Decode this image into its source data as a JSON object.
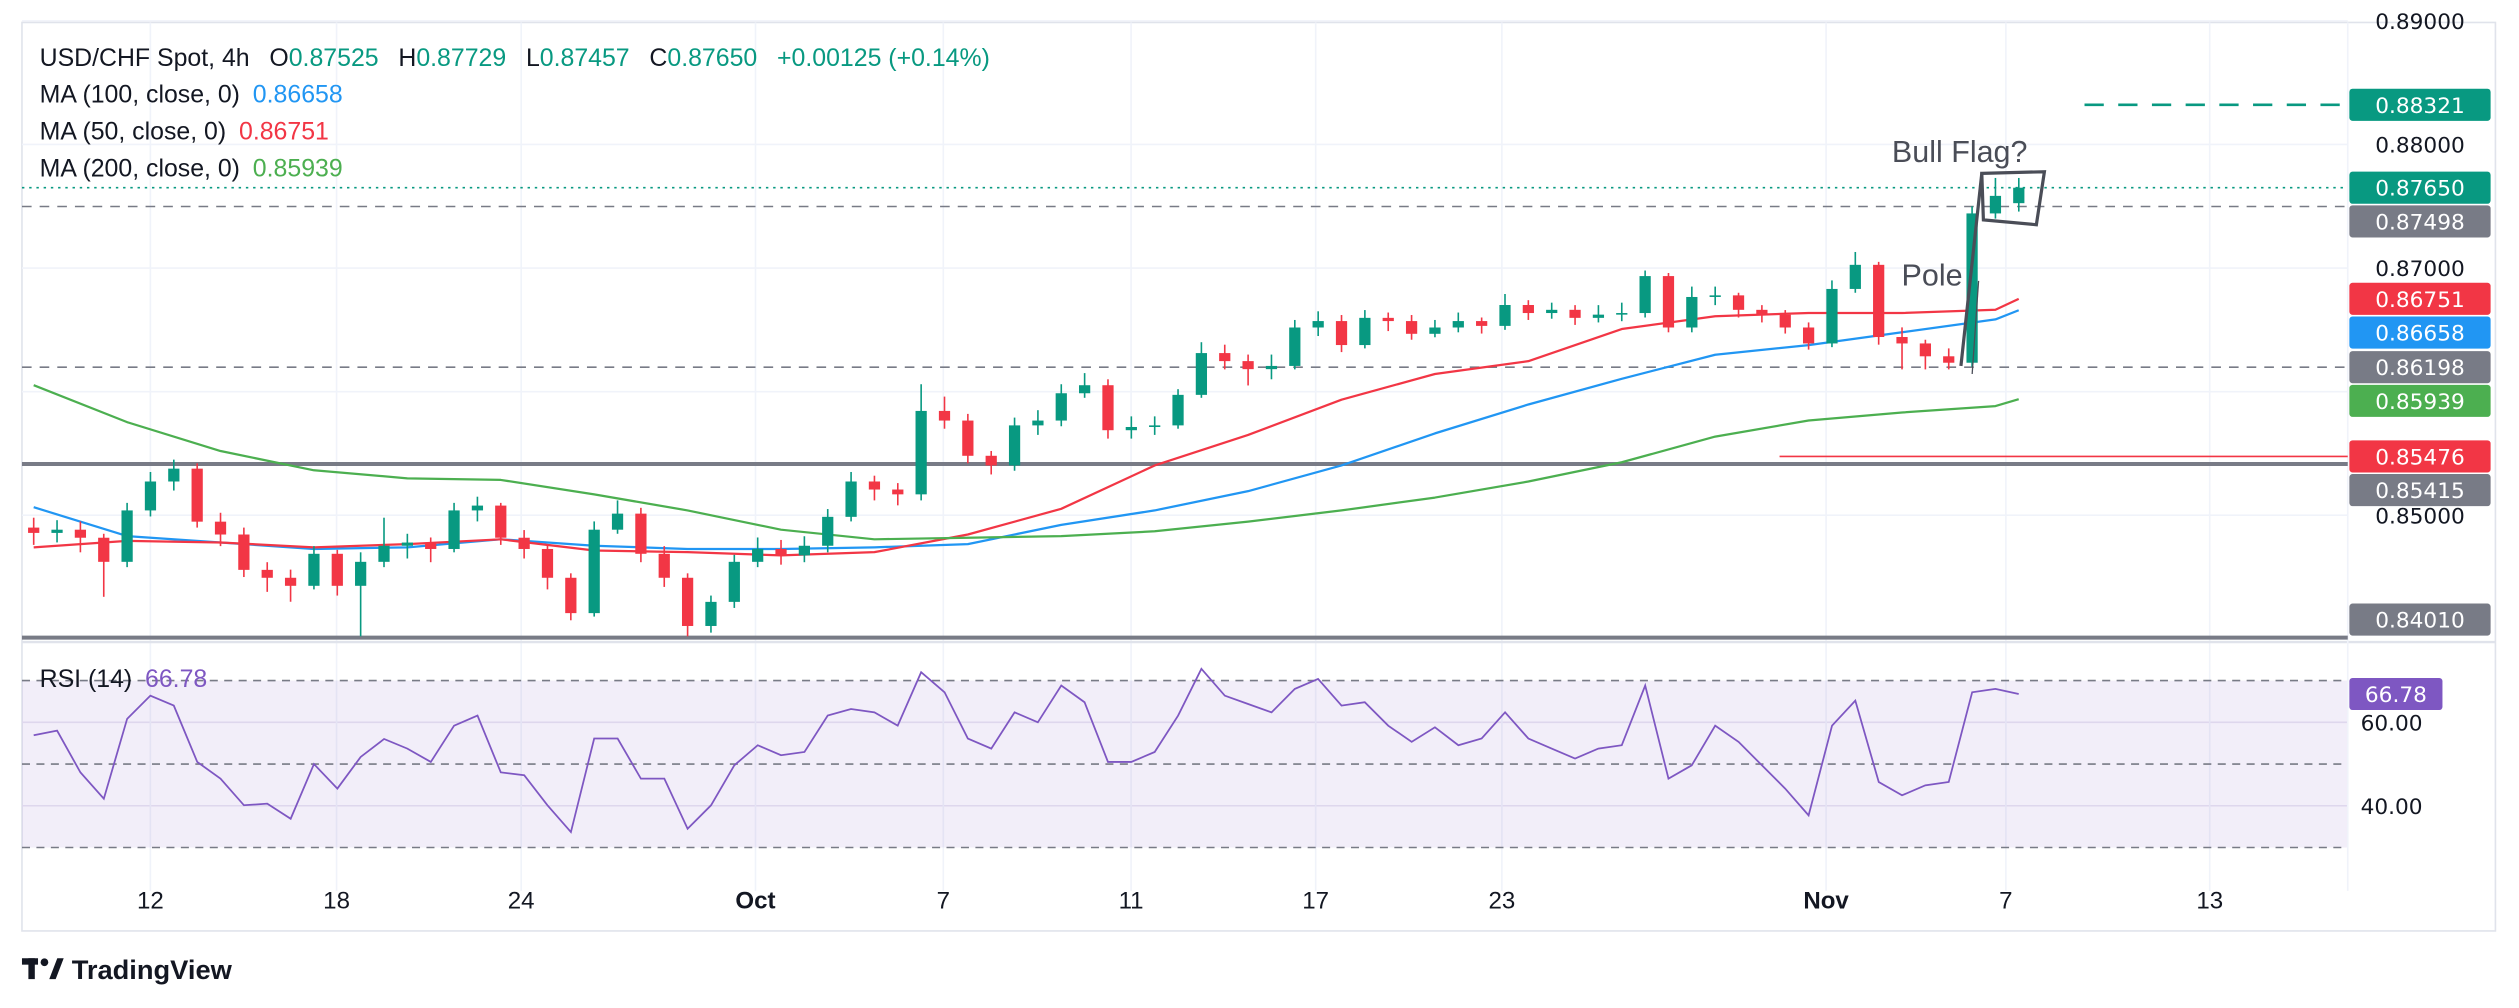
{
  "header": {
    "symbol": "USD/CHF Spot, 4h",
    "o_label": "O",
    "o_value": "0.87525",
    "h_label": "H",
    "h_value": "0.87729",
    "l_label": "L",
    "l_value": "0.87457",
    "c_label": "C",
    "c_value": "0.87650",
    "change": "+0.00125 (+0.14%)"
  },
  "legend": [
    {
      "label": "MA (100, close, 0)",
      "value": "0.86658",
      "color": "#2196f3"
    },
    {
      "label": "MA (50, close, 0)",
      "value": "0.86751",
      "color": "#f23645"
    },
    {
      "label": "MA (200, close, 0)",
      "value": "0.85939",
      "color": "#4caf50"
    }
  ],
  "rsi_legend": {
    "label": "RSI (14)",
    "value": "66.78",
    "color": "#7e57c2"
  },
  "annotations": {
    "flag": "Bull Flag?",
    "pole": "Pole"
  },
  "branding": {
    "logo_text": "TradingView"
  },
  "colors": {
    "up": "#089981",
    "down": "#f23645",
    "ma100": "#2196f3",
    "ma50": "#f23645",
    "ma200": "#4caf50",
    "rsi": "#7e57c2",
    "level": "#787b86"
  },
  "chart_data": [
    {
      "type": "candlestick",
      "title": "USD/CHF Spot, 4h",
      "ylim": [
        0.8395,
        0.8905
      ],
      "grid": true,
      "y_ticks": [
        "0.89000",
        "0.88000",
        "0.87000",
        "0.85000"
      ],
      "x_ticks": [
        "12",
        "18",
        "24",
        "Oct",
        "7",
        "11",
        "17",
        "23",
        "Nov",
        "7",
        "13"
      ],
      "candles": [
        [
          0.849,
          0.8498,
          0.8476,
          0.84857
        ],
        [
          0.84857,
          0.8496,
          0.8478,
          0.84883
        ],
        [
          0.84883,
          0.8495,
          0.847,
          0.84818
        ],
        [
          0.84818,
          0.8485,
          0.8434,
          0.84623
        ],
        [
          0.84623,
          0.851,
          0.8458,
          0.85039
        ],
        [
          0.85039,
          0.8535,
          0.8499,
          0.85273
        ],
        [
          0.85273,
          0.8545,
          0.852,
          0.85377
        ],
        [
          0.85377,
          0.8542,
          0.849,
          0.84948
        ],
        [
          0.84948,
          0.8502,
          0.8475,
          0.84844
        ],
        [
          0.84844,
          0.849,
          0.845,
          0.84558
        ],
        [
          0.84558,
          0.8462,
          0.8438,
          0.84494
        ],
        [
          0.84494,
          0.8456,
          0.843,
          0.84429
        ],
        [
          0.84429,
          0.8475,
          0.844,
          0.84688
        ],
        [
          0.84688,
          0.8472,
          0.8435,
          0.84429
        ],
        [
          0.84429,
          0.847,
          0.8402,
          0.84623
        ],
        [
          0.84623,
          0.8498,
          0.8458,
          0.84753
        ],
        [
          0.84753,
          0.8485,
          0.8465,
          0.84779
        ],
        [
          0.84779,
          0.8482,
          0.8462,
          0.84727
        ],
        [
          0.84727,
          0.851,
          0.847,
          0.85039
        ],
        [
          0.85039,
          0.8515,
          0.8495,
          0.85078
        ],
        [
          0.85078,
          0.851,
          0.8476,
          0.84818
        ],
        [
          0.84818,
          0.8488,
          0.8465,
          0.84727
        ],
        [
          0.84727,
          0.8476,
          0.844,
          0.84494
        ],
        [
          0.84494,
          0.8453,
          0.8415,
          0.84208
        ],
        [
          0.84208,
          0.8495,
          0.8418,
          0.84883
        ],
        [
          0.84883,
          0.8512,
          0.8485,
          0.85013
        ],
        [
          0.85013,
          0.8506,
          0.8462,
          0.84688
        ],
        [
          0.84688,
          0.8475,
          0.8442,
          0.84494
        ],
        [
          0.84494,
          0.8453,
          0.8402,
          0.84104
        ],
        [
          0.84104,
          0.8435,
          0.8405,
          0.84299
        ],
        [
          0.84299,
          0.8468,
          0.8425,
          0.84623
        ],
        [
          0.84623,
          0.8482,
          0.8458,
          0.84727
        ],
        [
          0.84727,
          0.848,
          0.846,
          0.84675
        ],
        [
          0.84675,
          0.8483,
          0.8462,
          0.84753
        ],
        [
          0.84753,
          0.8505,
          0.847,
          0.84987
        ],
        [
          0.84987,
          0.8535,
          0.8495,
          0.85273
        ],
        [
          0.85273,
          0.8532,
          0.8512,
          0.85208
        ],
        [
          0.85208,
          0.8526,
          0.8508,
          0.85169
        ],
        [
          0.85169,
          0.8606,
          0.8512,
          0.85844
        ],
        [
          0.85844,
          0.8596,
          0.857,
          0.85766
        ],
        [
          0.85766,
          0.8582,
          0.8542,
          0.85481
        ],
        [
          0.85481,
          0.8552,
          0.8533,
          0.85403
        ],
        [
          0.85403,
          0.8579,
          0.8536,
          0.85727
        ],
        [
          0.85727,
          0.8585,
          0.8565,
          0.85766
        ],
        [
          0.85766,
          0.8606,
          0.8572,
          0.85987
        ],
        [
          0.85987,
          0.8615,
          0.8595,
          0.86052
        ],
        [
          0.86052,
          0.861,
          0.8562,
          0.85688
        ],
        [
          0.85688,
          0.858,
          0.8562,
          0.85714
        ],
        [
          0.85714,
          0.858,
          0.8565,
          0.85727
        ],
        [
          0.85727,
          0.8602,
          0.857,
          0.85974
        ],
        [
          0.85974,
          0.864,
          0.8595,
          0.86312
        ],
        [
          0.86312,
          0.8638,
          0.8618,
          0.86247
        ],
        [
          0.86247,
          0.863,
          0.8605,
          0.86182
        ],
        [
          0.86182,
          0.863,
          0.861,
          0.86208
        ],
        [
          0.86208,
          0.8658,
          0.8618,
          0.86519
        ],
        [
          0.86519,
          0.8665,
          0.8645,
          0.86571
        ],
        [
          0.86571,
          0.8662,
          0.8632,
          0.86377
        ],
        [
          0.86377,
          0.8666,
          0.8635,
          0.86597
        ],
        [
          0.86597,
          0.8664,
          0.8649,
          0.86571
        ],
        [
          0.86571,
          0.8662,
          0.8642,
          0.86468
        ],
        [
          0.86468,
          0.8658,
          0.8644,
          0.86519
        ],
        [
          0.86519,
          0.8664,
          0.8648,
          0.86571
        ],
        [
          0.86571,
          0.866,
          0.8647,
          0.86532
        ],
        [
          0.86532,
          0.8679,
          0.865,
          0.86701
        ],
        [
          0.86701,
          0.8674,
          0.8658,
          0.86636
        ],
        [
          0.86636,
          0.8672,
          0.8659,
          0.86662
        ],
        [
          0.86662,
          0.867,
          0.8654,
          0.86597
        ],
        [
          0.86597,
          0.867,
          0.8656,
          0.86623
        ],
        [
          0.86623,
          0.8672,
          0.8657,
          0.86636
        ],
        [
          0.86636,
          0.8698,
          0.866,
          0.86935
        ],
        [
          0.86935,
          0.8696,
          0.8648,
          0.86519
        ],
        [
          0.86519,
          0.8685,
          0.8648,
          0.86766
        ],
        [
          0.86766,
          0.8685,
          0.867,
          0.86779
        ],
        [
          0.86779,
          0.868,
          0.866,
          0.86662
        ],
        [
          0.86662,
          0.867,
          0.8656,
          0.86623
        ],
        [
          0.86623,
          0.8666,
          0.8647,
          0.86519
        ],
        [
          0.86519,
          0.8656,
          0.8634,
          0.8639
        ],
        [
          0.8639,
          0.869,
          0.8636,
          0.86831
        ],
        [
          0.86831,
          0.8713,
          0.868,
          0.87026
        ],
        [
          0.87026,
          0.8705,
          0.8638,
          0.86442
        ],
        [
          0.86442,
          0.8652,
          0.8618,
          0.8639
        ],
        [
          0.8639,
          0.8642,
          0.8618,
          0.86286
        ],
        [
          0.86286,
          0.8635,
          0.8618,
          0.86234
        ],
        [
          0.86234,
          0.875,
          0.862,
          0.87442
        ],
        [
          0.87442,
          0.87729,
          0.874,
          0.87584
        ],
        [
          0.87525,
          0.87729,
          0.87457,
          0.8765
        ]
      ],
      "series": [
        {
          "name": "MA (100, close, 0)",
          "color": "#2196f3",
          "values": [
            0.85065,
            0.84831,
            0.84779,
            0.84727,
            0.8474,
            0.84805,
            0.84753,
            0.84727,
            0.84727,
            0.8474,
            0.84766,
            0.84922,
            0.85039,
            0.85195,
            0.85403,
            0.85662,
            0.85896,
            0.86104,
            0.86299,
            0.86377,
            0.86481,
            0.86584,
            0.86658
          ]
        },
        {
          "name": "MA (50, close, 0)",
          "color": "#f23645",
          "values": [
            0.8474,
            0.84792,
            0.84779,
            0.8474,
            0.84766,
            0.84805,
            0.84714,
            0.84701,
            0.84675,
            0.84701,
            0.84844,
            0.85052,
            0.85403,
            0.85649,
            0.85935,
            0.86143,
            0.86247,
            0.86506,
            0.8661,
            0.86636,
            0.86636,
            0.86662,
            0.86751
          ]
        },
        {
          "name": "MA (200, close, 0)",
          "color": "#4caf50",
          "values": [
            0.86052,
            0.85753,
            0.85519,
            0.85364,
            0.85299,
            0.85286,
            0.85169,
            0.85039,
            0.84883,
            0.84805,
            0.84818,
            0.84831,
            0.8487,
            0.84948,
            0.85039,
            0.85143,
            0.85273,
            0.85429,
            0.85636,
            0.85766,
            0.85831,
            0.85883,
            0.85939
          ]
        }
      ],
      "levels": [
        {
          "value": 0.88321,
          "style": "dashed",
          "color": "#089981"
        },
        {
          "value": 0.8765,
          "style": "dotted",
          "color": "#089981"
        },
        {
          "value": 0.87498,
          "style": "dashed",
          "color": "#787b86"
        },
        {
          "value": 0.86198,
          "style": "dashed",
          "color": "#787b86"
        },
        {
          "value": 0.85476,
          "style": "solid",
          "color": "#f23645"
        },
        {
          "value": 0.85415,
          "style": "solid-thick",
          "color": "#787b86"
        },
        {
          "value": 0.8401,
          "style": "solid-thick",
          "color": "#787b86"
        }
      ],
      "price_tags": [
        {
          "value": "0.88321",
          "color": "#089981"
        },
        {
          "value": "0.87650",
          "color": "#089981"
        },
        {
          "value": "0.87498",
          "color": "#787b86"
        },
        {
          "value": "0.86751",
          "color": "#f23645"
        },
        {
          "value": "0.86658",
          "color": "#2196f3"
        },
        {
          "value": "0.86198",
          "color": "#787b86"
        },
        {
          "value": "0.85939",
          "color": "#4caf50"
        },
        {
          "value": "0.85476",
          "color": "#f23645"
        },
        {
          "value": "0.85415",
          "color": "#787b86"
        },
        {
          "value": "0.84010",
          "color": "#787b86"
        }
      ]
    },
    {
      "type": "line",
      "title": "RSI (14)",
      "ylim": [
        25,
        77
      ],
      "y_ticks": [
        "60.00",
        "40.00"
      ],
      "bands": [
        70,
        50,
        30
      ],
      "series": [
        {
          "name": "RSI (14)",
          "color": "#7e57c2",
          "values": [
            56.9,
            58,
            48,
            41.7,
            60.8,
            66.4,
            64,
            50.5,
            46.5,
            40.1,
            40.5,
            36.9,
            50,
            44.1,
            51.7,
            56,
            53.7,
            50.5,
            59.2,
            61.6,
            48,
            47.3,
            40.1,
            33.7,
            56.1,
            56.1,
            46.5,
            46.5,
            34.5,
            40.1,
            49.7,
            54.5,
            52.1,
            52.9,
            61.6,
            63.2,
            62.4,
            59.2,
            72,
            67.2,
            56.1,
            53.7,
            62.4,
            60,
            68.8,
            64.8,
            50.5,
            50.5,
            52.9,
            61.6,
            72.8,
            66.4,
            64.4,
            62.4,
            68,
            70.4,
            64,
            64.8,
            59.2,
            55.3,
            58.8,
            54.5,
            56.1,
            62.4,
            56.1,
            53.7,
            51.3,
            53.7,
            54.5,
            68.8,
            46.5,
            49.7,
            59.2,
            55.3,
            49.7,
            44.1,
            37.7,
            59.2,
            65.2,
            45.7,
            42.5,
            44.9,
            45.7,
            67.2,
            68,
            66.78
          ]
        }
      ],
      "tag": {
        "value": "66.78",
        "color": "#7e57c2"
      }
    }
  ]
}
